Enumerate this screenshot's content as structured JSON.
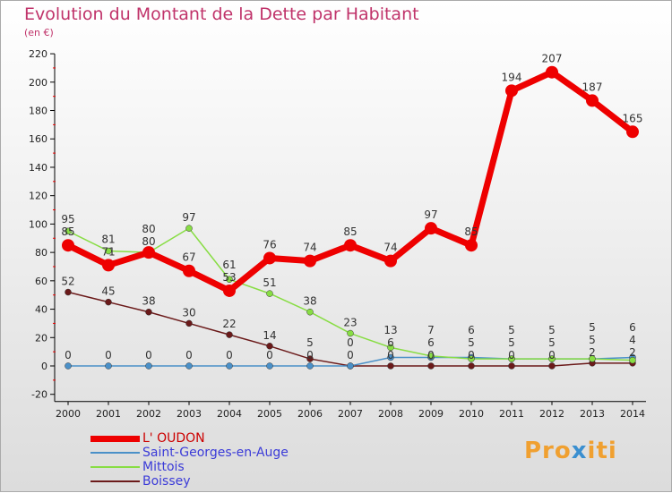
{
  "chart_data": {
    "type": "line",
    "title": "Evolution du Montant de la Dette par Habitant",
    "ylabel": "(en €)",
    "ylim": [
      -20,
      220
    ],
    "yticks": [
      -20,
      0,
      20,
      40,
      60,
      80,
      100,
      120,
      140,
      160,
      180,
      200,
      220
    ],
    "x": [
      "2000",
      "2001",
      "2002",
      "2003",
      "2004",
      "2005",
      "2006",
      "2007",
      "2008",
      "2009",
      "2010",
      "2011",
      "2012",
      "2013",
      "2014"
    ],
    "series": [
      {
        "name": "L' OUDON",
        "color": "#ee0000",
        "values": [
          85,
          71,
          80,
          67,
          53,
          76,
          74,
          85,
          74,
          97,
          85,
          194,
          207,
          187,
          165
        ]
      },
      {
        "name": "Saint-Georges-en-Auge",
        "color": "#4a90c8",
        "values": [
          0,
          0,
          0,
          0,
          0,
          0,
          0,
          0,
          6,
          6,
          6,
          5,
          5,
          5,
          6
        ]
      },
      {
        "name": "Mittois",
        "color": "#88dd44",
        "values": [
          95,
          81,
          80,
          97,
          61,
          51,
          38,
          23,
          13,
          7,
          5,
          5,
          5,
          5,
          4
        ]
      },
      {
        "name": "Boissey",
        "color": "#6b1a1a",
        "values": [
          52,
          45,
          38,
          30,
          22,
          14,
          5,
          0,
          0,
          0,
          0,
          0,
          0,
          2,
          2
        ]
      }
    ]
  },
  "logo": "Proxiti"
}
